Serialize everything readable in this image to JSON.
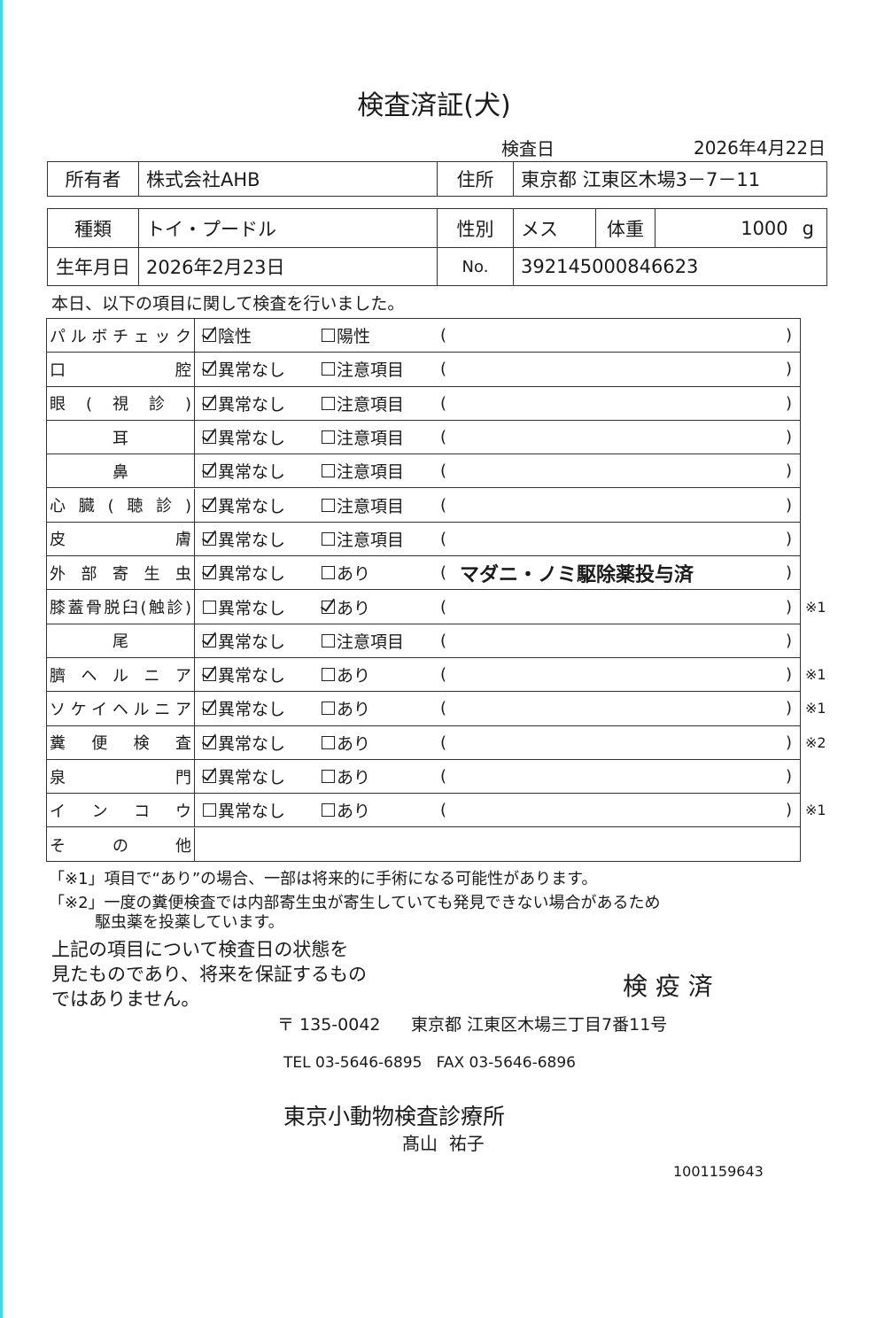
{
  "title": "検査済証(犬)",
  "exam_date_label": "検査日",
  "exam_date": "2026年4月22日",
  "owner": {
    "label": "所有者",
    "value": "株式会社AHB",
    "address_label": "住所",
    "address": "東京都 江東区木場3－7－11"
  },
  "animal": {
    "breed_label": "種類",
    "breed": "トイ・プードル",
    "sex_label": "性別",
    "sex": "メス",
    "weight_label": "体重",
    "weight": "1000",
    "weight_unit": "g",
    "birth_label": "生年月日",
    "birth": "2026年2月23日",
    "no_label": "No.",
    "no": "392145000846623"
  },
  "intro": "本日、以下の項目に関して検査を行いました。",
  "items": [
    {
      "label": "パルボチェック",
      "opt1": "陰性",
      "opt2": "陽性",
      "checked": 1,
      "remark": "",
      "note": ""
    },
    {
      "label": "口腔",
      "opt1": "異常なし",
      "opt2": "注意項目",
      "checked": 1,
      "remark": "",
      "note": ""
    },
    {
      "label": "眼(視診)",
      "opt1": "異常なし",
      "opt2": "注意項目",
      "checked": 1,
      "remark": "",
      "note": ""
    },
    {
      "label": "耳",
      "opt1": "異常なし",
      "opt2": "注意項目",
      "checked": 1,
      "remark": "",
      "note": "",
      "center": true
    },
    {
      "label": "鼻",
      "opt1": "異常なし",
      "opt2": "注意項目",
      "checked": 1,
      "remark": "",
      "note": "",
      "center": true
    },
    {
      "label": "心臓(聴診)",
      "opt1": "異常なし",
      "opt2": "注意項目",
      "checked": 1,
      "remark": "",
      "note": ""
    },
    {
      "label": "皮膚",
      "opt1": "異常なし",
      "opt2": "注意項目",
      "checked": 1,
      "remark": "",
      "note": ""
    },
    {
      "label": "外部寄生虫",
      "opt1": "異常なし",
      "opt2": "あり",
      "checked": 1,
      "remark": "マダニ・ノミ駆除薬投与済",
      "note": ""
    },
    {
      "label": "膝蓋骨脱臼(触診)",
      "opt1": "異常なし",
      "opt2": "あり",
      "checked": 2,
      "remark": "",
      "note": "※1"
    },
    {
      "label": "尾",
      "opt1": "異常なし",
      "opt2": "注意項目",
      "checked": 1,
      "remark": "",
      "note": "",
      "center": true
    },
    {
      "label": "臍ヘルニア",
      "opt1": "異常なし",
      "opt2": "あり",
      "checked": 1,
      "remark": "",
      "note": "※1"
    },
    {
      "label": "ソケイヘルニア",
      "opt1": "異常なし",
      "opt2": "あり",
      "checked": 1,
      "remark": "",
      "note": "※1"
    },
    {
      "label": "糞便検査",
      "opt1": "異常なし",
      "opt2": "あり",
      "checked": 1,
      "remark": "",
      "note": "※2"
    },
    {
      "label": "泉門",
      "opt1": "異常なし",
      "opt2": "あり",
      "checked": 1,
      "remark": "",
      "note": ""
    },
    {
      "label": "インコウ",
      "opt1": "異常なし",
      "opt2": "あり",
      "checked": 0,
      "remark": "",
      "note": "※1"
    },
    {
      "label": "その他"
    }
  ],
  "footnotes": [
    "「※1」項目で“あり”の場合、一部は将来的に手術になる可能性があります。",
    "「※2」一度の糞便検査では内部寄生虫が寄生していても発見できない場合があるため",
    "駆虫薬を投薬しています。"
  ],
  "disclaimer": [
    "上記の項目について検査日の状態を",
    "見たものであり、将来を保証するもの",
    "ではありません。"
  ],
  "stamp": "検 疫 済",
  "clinic": {
    "postal": "〒 135-0042",
    "address": "東京都 江東区木場三丁目7番11号",
    "tel_fax": "TEL 03-5646-6895   FAX 03-5646-6896",
    "name": "東京小動物検査診療所",
    "vet": "髙山  祐子"
  },
  "serial": "1001159643"
}
